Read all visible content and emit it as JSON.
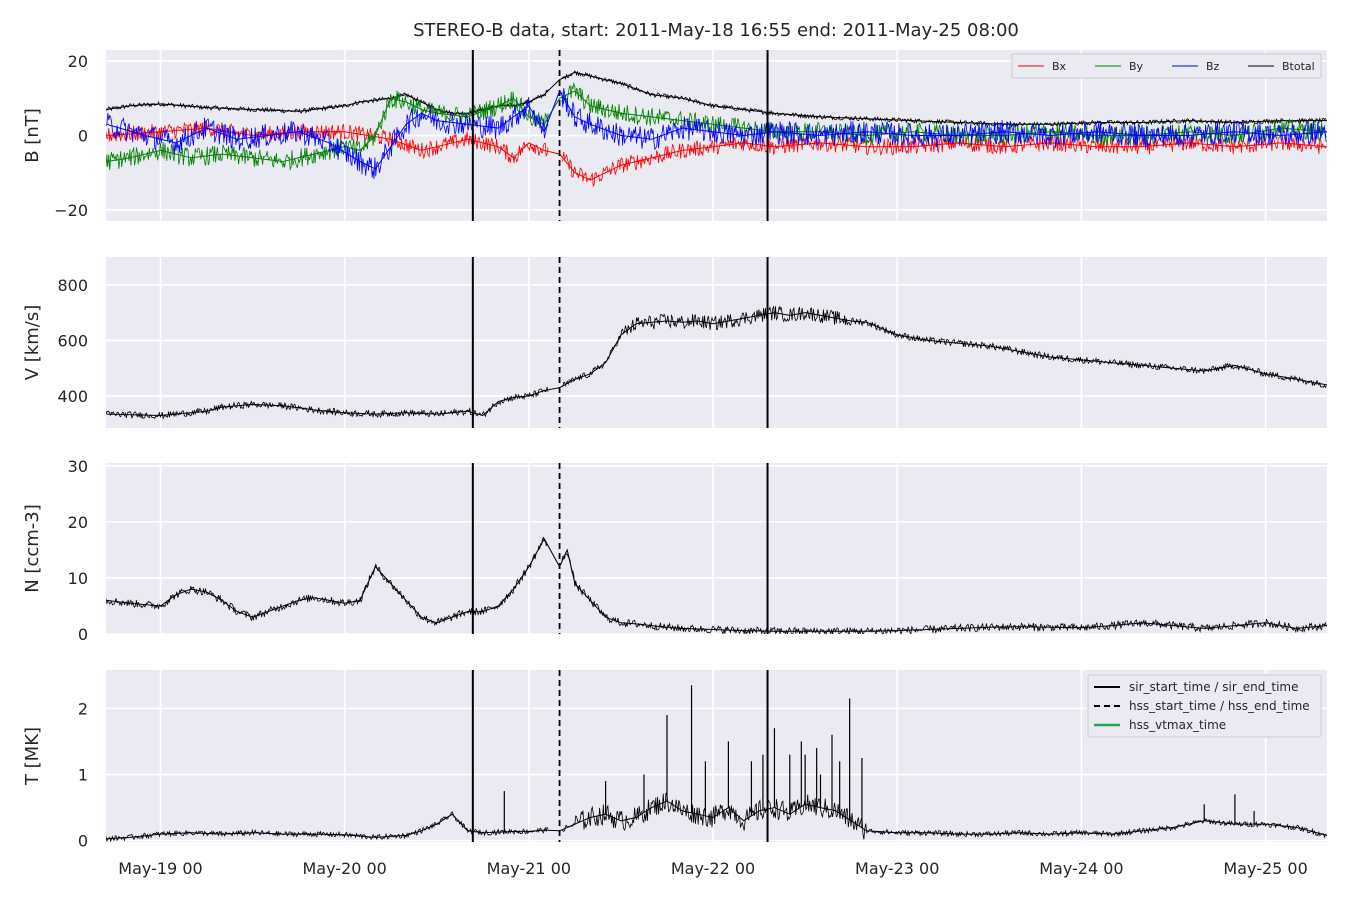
{
  "title": "STEREO-B data, start: 2011-May-18 16:55  end: 2011-May-25 08:00",
  "x_tick_labels": [
    "May-19 00",
    "May-20 00",
    "May-21 00",
    "May-22 00",
    "May-23 00",
    "May-24 00",
    "May-25 00"
  ],
  "colors": {
    "panel_bg": "#eaeaf2",
    "grid": "#ffffff",
    "Bx": "#ff0000",
    "By": "#008000",
    "Bz": "#0000ff",
    "Btotal": "#000000",
    "vtmax": "#2ca05a",
    "text": "#262626"
  },
  "chart_data": {
    "type": "line",
    "x_unit": "hours since 2011-May-18 00:00",
    "xlim": [
      16.9,
      176.0
    ],
    "x_ticks": [
      24,
      48,
      72,
      96,
      120,
      144,
      168
    ],
    "events": {
      "sir_start_time": 64.7,
      "hss_start_time": 76.0,
      "sir_end_time": 103.1,
      "legend": [
        "sir_start_time / sir_end_time",
        "hss_start_time / hss_end_time",
        "hss_vtmax_time"
      ]
    },
    "panels": [
      {
        "ylabel": "B [nT]",
        "ylim": [
          -23,
          23
        ],
        "yticks": [
          -20,
          0,
          20
        ],
        "ytick_labels": [
          "−20",
          "0",
          "20"
        ],
        "legend": [
          "Bx",
          "By",
          "Bz",
          "Btotal"
        ],
        "series": [
          {
            "name": "Btotal",
            "x": [
              17,
              20,
              24,
              30,
              36,
              42,
              48,
              50,
              54,
              56,
              58,
              60,
              62,
              64,
              66,
              68,
              70,
              72,
              74,
              76,
              78,
              80,
              84,
              88,
              92,
              96,
              100,
              104,
              110,
              116,
              122,
              128,
              134,
              140,
              146,
              152,
              158,
              164,
              170,
              176
            ],
            "y": [
              7,
              8,
              8.5,
              7.5,
              7,
              6.5,
              8,
              9,
              10,
              11,
              9,
              7,
              6,
              6,
              7,
              8,
              8,
              9,
              11,
              15,
              17,
              16,
              14,
              11,
              10,
              8,
              7,
              6,
              5,
              4.5,
              4,
              3.5,
              3,
              3,
              3.5,
              3.5,
              4,
              3.5,
              4,
              4
            ]
          },
          {
            "name": "Bx",
            "x": [
              17,
              24,
              30,
              36,
              42,
              48,
              54,
              58,
              60,
              64,
              68,
              70,
              72,
              74,
              76,
              78,
              80,
              84,
              88,
              92,
              96,
              100,
              104,
              110,
              116,
              122,
              128,
              134,
              140,
              146,
              152,
              158,
              164,
              170,
              176
            ],
            "y": [
              0,
              1,
              2,
              0,
              1,
              1,
              -1,
              -4,
              -3,
              -1,
              -3,
              -6,
              -2,
              -4,
              -5,
              -10,
              -12,
              -8,
              -6,
              -4,
              -3,
              -2,
              -3,
              -2,
              -3,
              -3,
              -2,
              -3,
              -2,
              -3,
              -3,
              -2,
              -3,
              -2,
              -3
            ]
          },
          {
            "name": "By",
            "x": [
              17,
              20,
              24,
              28,
              32,
              36,
              40,
              44,
              48,
              50,
              52,
              54,
              56,
              58,
              60,
              64,
              68,
              70,
              72,
              74,
              76,
              78,
              80,
              84,
              88,
              92,
              96,
              100,
              104,
              110,
              116,
              122,
              128,
              134,
              140,
              146,
              152,
              158,
              164,
              170,
              176
            ],
            "y": [
              -7,
              -6,
              -4,
              -6,
              -5,
              -6,
              -7,
              -5,
              -3,
              -4,
              0,
              10,
              9,
              7,
              6,
              5,
              8,
              10,
              5,
              3,
              10,
              12,
              8,
              6,
              5,
              4,
              3,
              2,
              1,
              1,
              0,
              1,
              0,
              0,
              1,
              0,
              0,
              1,
              0,
              2,
              1
            ]
          },
          {
            "name": "Bz",
            "x": [
              17,
              22,
              26,
              30,
              34,
              38,
              42,
              46,
              50,
              52,
              54,
              56,
              58,
              60,
              64,
              68,
              70,
              72,
              74,
              76,
              78,
              80,
              84,
              88,
              92,
              96,
              100,
              104,
              110,
              116,
              122,
              128,
              134,
              140,
              146,
              152,
              158,
              164,
              170,
              176
            ],
            "y": [
              3,
              0,
              -2,
              2,
              -1,
              0,
              1,
              -2,
              -7,
              -9,
              -3,
              3,
              6,
              4,
              3,
              2,
              5,
              8,
              1,
              12,
              5,
              3,
              0,
              -1,
              2,
              1,
              0,
              1,
              0,
              1,
              0,
              0,
              1,
              0,
              1,
              0,
              0,
              1,
              0,
              1
            ]
          }
        ]
      },
      {
        "ylabel": "V [km/s]",
        "ylim": [
          285,
          900
        ],
        "yticks": [
          400,
          600,
          800
        ],
        "ytick_labels": [
          "400",
          "600",
          "800"
        ],
        "series": [
          {
            "name": "V",
            "x": [
              17,
              24,
              30,
              32,
              36,
              40,
              44,
              48,
              52,
              56,
              60,
              64,
              66,
              68,
              70,
              72,
              74,
              76,
              78,
              80,
              82,
              84,
              86,
              88,
              90,
              92,
              94,
              96,
              98,
              100,
              102,
              104,
              106,
              108,
              110,
              112,
              114,
              116,
              120,
              124,
              128,
              132,
              136,
              140,
              144,
              148,
              152,
              156,
              160,
              164,
              168,
              172,
              176
            ],
            "y": [
              335,
              330,
              345,
              360,
              370,
              365,
              350,
              340,
              335,
              340,
              335,
              345,
              330,
              380,
              395,
              400,
              420,
              430,
              460,
              480,
              520,
              620,
              660,
              665,
              670,
              665,
              670,
              660,
              670,
              680,
              690,
              700,
              690,
              700,
              690,
              680,
              670,
              665,
              620,
              600,
              590,
              580,
              560,
              540,
              530,
              520,
              510,
              500,
              490,
              510,
              480,
              460,
              440
            ]
          }
        ]
      },
      {
        "ylabel": "N [ccm-3]",
        "ylim": [
          0,
          30.5
        ],
        "yticks": [
          0,
          10,
          20,
          30
        ],
        "ytick_labels": [
          "0",
          "10",
          "20",
          "30"
        ],
        "series": [
          {
            "name": "N",
            "x": [
              17,
              20,
              24,
              26,
              28,
              30,
              32,
              34,
              36,
              38,
              40,
              42,
              44,
              46,
              48,
              50,
              52,
              54,
              56,
              58,
              60,
              62,
              64,
              66,
              68,
              70,
              72,
              74,
              76,
              77,
              78,
              80,
              82,
              84,
              86,
              88,
              90,
              92,
              96,
              100,
              104,
              108,
              112,
              116,
              120,
              124,
              128,
              132,
              136,
              140,
              144,
              148,
              152,
              156,
              160,
              164,
              168,
              172,
              176
            ],
            "y": [
              6,
              5.5,
              5,
              7,
              8,
              7.5,
              6,
              4,
              3,
              4,
              5,
              6,
              6.5,
              6,
              5.5,
              6,
              12,
              9,
              6,
              3,
              2,
              3,
              4,
              4,
              5,
              8,
              12,
              17,
              12,
              15,
              9,
              6,
              3,
              2,
              1.8,
              1.5,
              1.2,
              1,
              0.8,
              0.6,
              0.5,
              0.5,
              0.5,
              0.5,
              0.6,
              0.8,
              1,
              1.2,
              1.3,
              1.2,
              1.1,
              1.5,
              2,
              1.5,
              1,
              1.5,
              2,
              1,
              1.5
            ]
          }
        ]
      },
      {
        "ylabel": "T [MK]",
        "ylim": [
          -0.02,
          2.58
        ],
        "yticks": [
          0,
          1,
          2
        ],
        "ytick_labels": [
          "0",
          "1",
          "2"
        ],
        "series": [
          {
            "name": "T",
            "x": [
              17,
              20,
              24,
              28,
              32,
              36,
              40,
              44,
              48,
              52,
              56,
              58,
              60,
              62,
              64,
              66,
              70,
              72,
              74,
              76,
              78,
              80,
              82,
              84,
              86,
              88,
              90,
              92,
              94,
              96,
              98,
              100,
              102,
              104,
              106,
              108,
              110,
              112,
              114,
              116,
              120,
              124,
              128,
              132,
              136,
              140,
              144,
              148,
              152,
              156,
              160,
              164,
              168,
              172,
              176
            ],
            "y": [
              0.03,
              0.05,
              0.1,
              0.12,
              0.1,
              0.12,
              0.1,
              0.1,
              0.09,
              0.05,
              0.08,
              0.15,
              0.25,
              0.4,
              0.15,
              0.12,
              0.14,
              0.14,
              0.16,
              0.15,
              0.25,
              0.35,
              0.4,
              0.3,
              0.35,
              0.5,
              0.6,
              0.45,
              0.4,
              0.35,
              0.5,
              0.3,
              0.45,
              0.5,
              0.4,
              0.55,
              0.5,
              0.45,
              0.3,
              0.15,
              0.12,
              0.12,
              0.1,
              0.1,
              0.12,
              0.1,
              0.12,
              0.1,
              0.15,
              0.2,
              0.3,
              0.25,
              0.25,
              0.2,
              0.08
            ]
          },
          {
            "name": "T spikes",
            "x": [
              68.8,
              82,
              87,
              90,
              93.2,
              95,
              98,
              101,
              102.5,
              104,
              106,
              107.5,
              108,
              109.5,
              110,
              111.5,
              112.5,
              113.8,
              115.4,
              160,
              164,
              166.5
            ],
            "y": [
              0.75,
              0.9,
              1.0,
              1.9,
              2.35,
              1.2,
              1.5,
              1.2,
              1.3,
              1.7,
              1.3,
              1.5,
              1.3,
              1.4,
              1.0,
              1.6,
              1.2,
              2.15,
              1.25,
              0.55,
              0.7,
              0.45
            ]
          }
        ]
      }
    ]
  }
}
